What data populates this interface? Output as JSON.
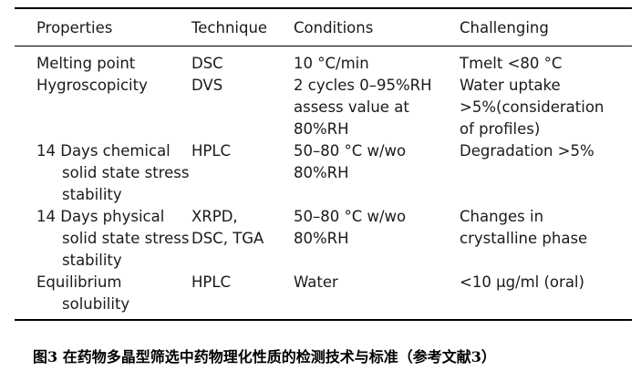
{
  "table": {
    "headers": {
      "properties": "Properties",
      "technique": "Technique",
      "conditions": "Conditions",
      "challenging": "Challenging"
    },
    "rows": [
      {
        "property": [
          "Melting point"
        ],
        "technique": [
          "DSC"
        ],
        "conditions": [
          "10 °C/min"
        ],
        "challenging": [
          "Tmelt <80 °C"
        ]
      },
      {
        "property": [
          "Hygroscopicity"
        ],
        "technique": [
          "DVS"
        ],
        "conditions": [
          "2 cycles 0–95%RH",
          "assess value at",
          "80%RH"
        ],
        "challenging": [
          "Water uptake",
          ">5%(consideration",
          "of profiles)"
        ]
      },
      {
        "property": [
          "14 Days chemical",
          "solid state stress",
          "stability"
        ],
        "technique": [
          "HPLC"
        ],
        "conditions": [
          "50–80 °C w/wo",
          "80%RH"
        ],
        "challenging": [
          "Degradation >5%"
        ]
      },
      {
        "property": [
          "14 Days physical",
          "solid state stress",
          "stability"
        ],
        "technique": [
          "XRPD,",
          "DSC, TGA"
        ],
        "conditions": [
          "50–80 °C w/wo",
          "80%RH"
        ],
        "challenging": [
          "Changes in",
          "crystalline phase"
        ]
      },
      {
        "property": [
          "Equilibrium",
          "solubility"
        ],
        "technique": [
          "HPLC"
        ],
        "conditions": [
          "Water"
        ],
        "challenging": [
          "<10 µg/ml (oral)"
        ]
      }
    ]
  },
  "caption": "图3 在药物多晶型筛选中药物理化性质的检测技术与标准（参考文献3）"
}
